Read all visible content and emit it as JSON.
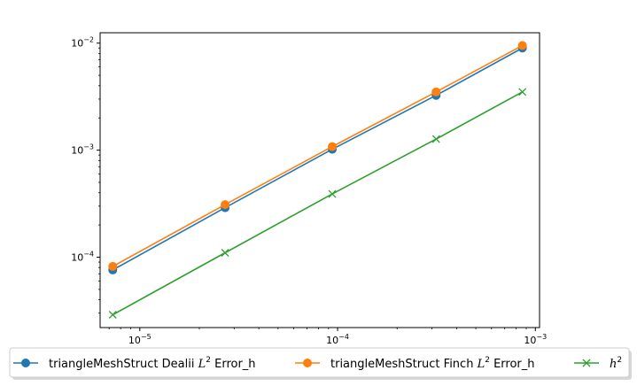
{
  "chart_data": {
    "type": "line",
    "xscale": "log",
    "yscale": "log",
    "xlim": [
      6.3e-06,
      0.00105
    ],
    "ylim": [
      2.2e-05,
      0.0125
    ],
    "x_ticks": [
      {
        "value": 1e-05,
        "base": "10",
        "exp": "−5"
      },
      {
        "value": 0.0001,
        "base": "10",
        "exp": "−4"
      },
      {
        "value": 0.001,
        "base": "10",
        "exp": "−3"
      }
    ],
    "y_ticks": [
      {
        "value": 0.0001,
        "base": "10",
        "exp": "−4"
      },
      {
        "value": 0.001,
        "base": "10",
        "exp": "−3"
      },
      {
        "value": 0.01,
        "base": "10",
        "exp": "−2"
      }
    ],
    "grid": false,
    "legend_position": "bottom-center",
    "series": [
      {
        "name_prefix": "triangleMeshStruct Dealii ",
        "name_math": "L",
        "name_sup": "2",
        "name_suffix": " Error_h",
        "color": "#1f77b4",
        "marker": "circle",
        "x": [
          7.3e-06,
          2.7e-05,
          9.4e-05,
          0.000315,
          0.00086
        ],
        "y": [
          7.6e-05,
          0.00029,
          0.00102,
          0.00325,
          0.009
        ]
      },
      {
        "name_prefix": "triangleMeshStruct Finch ",
        "name_math": "L",
        "name_sup": "2",
        "name_suffix": " Error_h",
        "color": "#ff7f0e",
        "marker": "circle",
        "x": [
          7.3e-06,
          2.7e-05,
          9.4e-05,
          0.000315,
          0.00086
        ],
        "y": [
          8.2e-05,
          0.00031,
          0.00108,
          0.0035,
          0.0095
        ]
      },
      {
        "name_prefix": "",
        "name_math": "h",
        "name_sup": "2",
        "name_suffix": "",
        "color": "#2ca02c",
        "marker": "x",
        "x": [
          7.3e-06,
          2.7e-05,
          9.4e-05,
          0.000315,
          0.00086
        ],
        "y": [
          2.9e-05,
          0.00011,
          0.00039,
          0.00127,
          0.0035
        ]
      }
    ]
  }
}
